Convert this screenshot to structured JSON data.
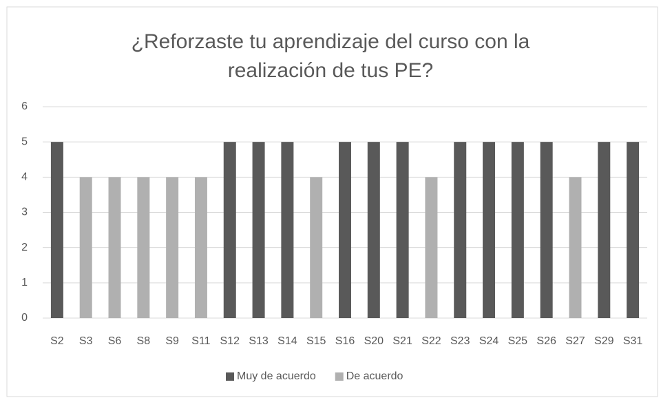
{
  "chart_data": {
    "type": "bar",
    "title": "¿Reforzaste tu aprendizaje del curso con la realización de tus PE?",
    "categories": [
      "S2",
      "S3",
      "S6",
      "S8",
      "S9",
      "S11",
      "S12",
      "S13",
      "S14",
      "S15",
      "S16",
      "S20",
      "S21",
      "S22",
      "S23",
      "S24",
      "S25",
      "S26",
      "S27",
      "S29",
      "S31"
    ],
    "series": [
      {
        "name": "Muy de acuerdo",
        "color": "#595959",
        "values": [
          5,
          null,
          null,
          null,
          null,
          null,
          5,
          5,
          5,
          null,
          5,
          5,
          5,
          null,
          5,
          5,
          5,
          5,
          null,
          5,
          5
        ]
      },
      {
        "name": "De acuerdo",
        "color": "#b0b0b0",
        "values": [
          null,
          4,
          4,
          4,
          4,
          4,
          null,
          null,
          null,
          4,
          null,
          null,
          null,
          4,
          null,
          null,
          null,
          null,
          4,
          null,
          null
        ]
      }
    ],
    "ylim": [
      0,
      6
    ],
    "yticks": [
      0,
      1,
      2,
      3,
      4,
      5,
      6
    ],
    "grid": true,
    "legend": "bottom"
  }
}
